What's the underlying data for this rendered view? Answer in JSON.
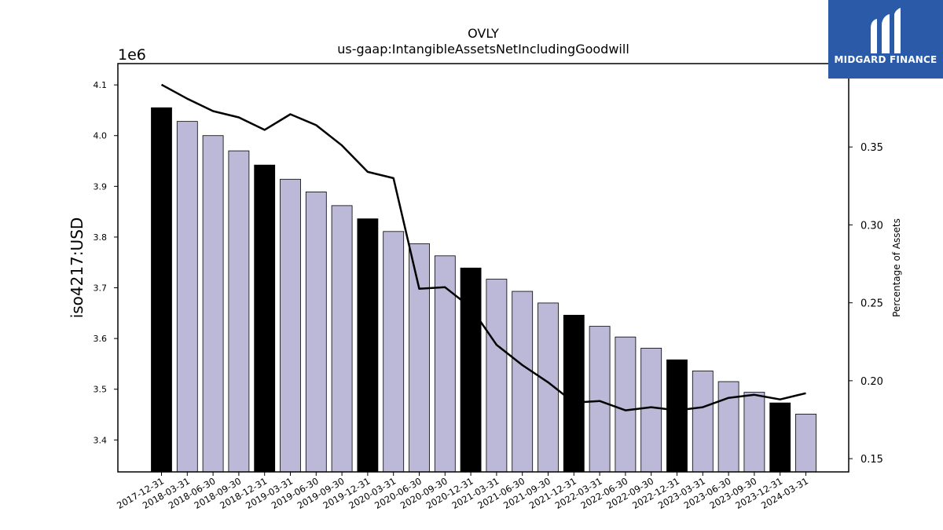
{
  "chart_data": {
    "type": "bar",
    "title": "OVLY",
    "subtitle": "us-gaap:IntangibleAssetsNetIncludingGoodwill",
    "ylabel": "iso4217:USD",
    "y_offset_label": "1e6",
    "y2label": "Percentage of Assets",
    "ylim": [
      3.337,
      4.142
    ],
    "y2lim": [
      0.1415,
      0.4035
    ],
    "yticks": [
      "3.4",
      "3.5",
      "3.6",
      "3.7",
      "3.8",
      "3.9",
      "4.0",
      "4.1"
    ],
    "y2ticks": [
      "0.15",
      "0.20",
      "0.25",
      "0.30",
      "0.35"
    ],
    "grid": false,
    "categories": [
      "2017-12-31",
      "2018-03-31",
      "2018-06-30",
      "2018-09-30",
      "2018-12-31",
      "2019-03-31",
      "2019-06-30",
      "2019-09-30",
      "2019-12-31",
      "2020-03-31",
      "2020-06-30",
      "2020-09-30",
      "2020-12-31",
      "2021-03-31",
      "2021-06-30",
      "2021-09-30",
      "2021-12-31",
      "2022-03-31",
      "2022-06-30",
      "2022-09-30",
      "2022-12-31",
      "2023-03-31",
      "2023-06-30",
      "2023-09-30",
      "2023-12-31",
      "2024-03-31"
    ],
    "series": [
      {
        "type": "bar",
        "axis": "left",
        "values": [
          4.055,
          4.028,
          4.0,
          3.97,
          3.942,
          3.914,
          3.889,
          3.862,
          3.836,
          3.811,
          3.787,
          3.763,
          3.739,
          3.717,
          3.693,
          3.67,
          3.646,
          3.624,
          3.603,
          3.581,
          3.558,
          3.536,
          3.515,
          3.494,
          3.473,
          3.451
        ],
        "year_end_color": "#000000",
        "quarter_color": "#bcb8d8"
      },
      {
        "type": "line",
        "axis": "right",
        "color": "#000000",
        "values": [
          0.39,
          0.381,
          0.373,
          0.369,
          0.361,
          0.371,
          0.364,
          0.351,
          0.334,
          0.33,
          0.259,
          0.26,
          0.247,
          0.223,
          0.21,
          0.199,
          0.186,
          0.187,
          0.181,
          0.183,
          0.181,
          0.183,
          0.189,
          0.191,
          0.188,
          0.192
        ]
      }
    ]
  },
  "logo": {
    "text": "MIDGARD FINANCE",
    "background": "#2b5aa8"
  }
}
